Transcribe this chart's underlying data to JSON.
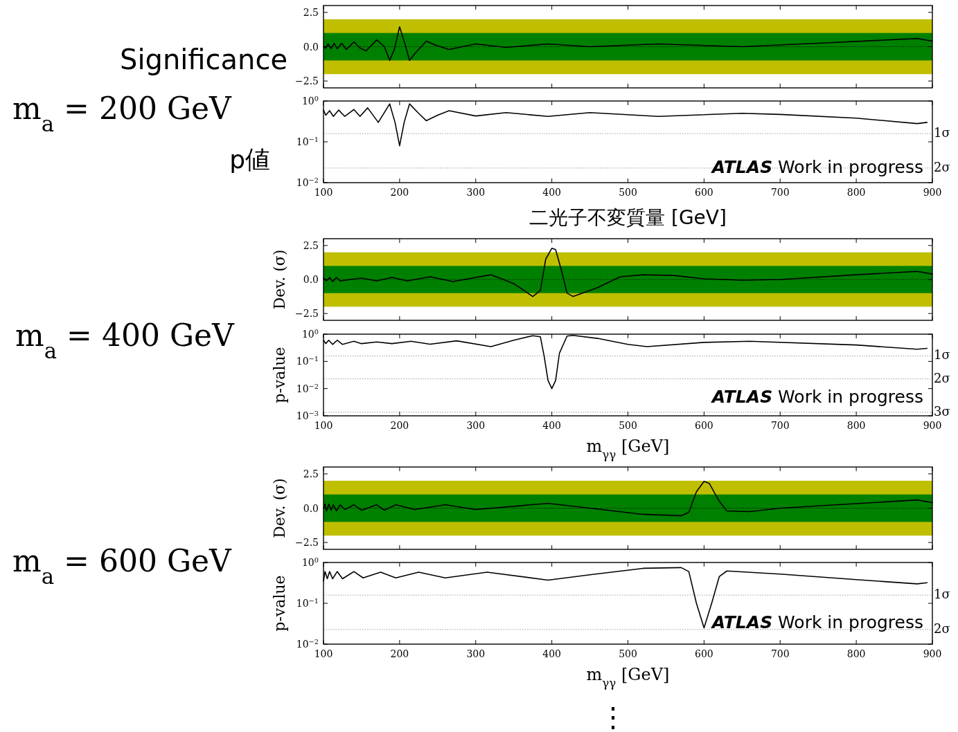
{
  "chart_data": [
    {
      "type": "line",
      "xlim": [
        100,
        900
      ],
      "xticks": [
        100,
        200,
        300,
        400,
        500,
        600,
        700,
        800,
        900
      ],
      "ylim": [
        -3,
        3
      ],
      "yticks": [
        {
          "value": -2.5,
          "label": "−2.5"
        },
        {
          "value": 0,
          "label": "0.0"
        },
        {
          "value": 2.5,
          "label": "2.5"
        }
      ],
      "tick_labels": "y",
      "bands": [
        {
          "axis": "y",
          "from": -2,
          "to": 2,
          "color": "#bfbf00"
        },
        {
          "axis": "y",
          "from": -1,
          "to": 1,
          "color": "#008000"
        }
      ],
      "ref_lines": [
        {
          "axis": "y",
          "value": 0,
          "color": "#000000",
          "line_style": "dotted"
        }
      ],
      "annotations": [
        "Significance",
        "m$_{a}$ = 200 GeV"
      ],
      "x": [
        100,
        103,
        106,
        110,
        114,
        118,
        124,
        130,
        140,
        148,
        156,
        170,
        180,
        187,
        193,
        200,
        207,
        213,
        220,
        235,
        248,
        265,
        300,
        340,
        395,
        450,
        540,
        650,
        750,
        880,
        900
      ],
      "series": [
        {
          "color": "#000000",
          "values": [
            0,
            -0.1,
            0.2,
            -0.15,
            0.25,
            -0.15,
            0.25,
            -0.2,
            0.35,
            -0.1,
            -0.3,
            0.5,
            0,
            -1.0,
            -0.2,
            1.45,
            0.2,
            -1.0,
            -0.5,
            0.4,
            0.1,
            -0.2,
            0.2,
            -0.05,
            0.2,
            0,
            0.2,
            0,
            0.25,
            0.6,
            0.4
          ]
        }
      ]
    },
    {
      "type": "line",
      "log": "y",
      "xlim": [
        100,
        900
      ],
      "xticks": [
        100,
        200,
        300,
        400,
        500,
        600,
        700,
        800,
        900
      ],
      "ylim": [
        0.01,
        1
      ],
      "yticks": [
        {
          "value": 0.01,
          "label": "10$^{−2}$"
        },
        {
          "value": 0.1,
          "label": "10$^{−1}$"
        },
        {
          "value": 1,
          "label": "10$^{0}$"
        }
      ],
      "xlabel": "二光子不変質量 [GeV]",
      "ref_lines": [
        {
          "axis": "y",
          "value": 0.159,
          "label": "1σ",
          "color": "#808080",
          "line_style": "dotted"
        },
        {
          "axis": "y",
          "value": 0.0228,
          "label": "2σ",
          "color": "#808080",
          "line_style": "dotted"
        }
      ],
      "annotations": [
        "p値",
        "ATLAS Work in progress"
      ],
      "x": [
        100,
        103,
        108,
        113,
        120,
        128,
        140,
        148,
        158,
        172,
        187,
        194,
        200,
        206,
        213,
        225,
        235,
        250,
        265,
        300,
        340,
        395,
        450,
        540,
        650,
        700,
        800,
        880,
        893
      ],
      "series": [
        {
          "color": "#000000",
          "values": [
            0.6,
            0.45,
            0.58,
            0.42,
            0.6,
            0.42,
            0.62,
            0.42,
            0.68,
            0.3,
            0.85,
            0.3,
            0.08,
            0.3,
            0.85,
            0.5,
            0.33,
            0.45,
            0.58,
            0.43,
            0.52,
            0.42,
            0.52,
            0.42,
            0.5,
            0.47,
            0.38,
            0.28,
            0.3
          ]
        }
      ]
    },
    {
      "type": "line",
      "xlim": [
        100,
        900
      ],
      "xticks": [
        100,
        200,
        300,
        400,
        500,
        600,
        700,
        800,
        900
      ],
      "ylim": [
        -3,
        3
      ],
      "yticks": [
        {
          "value": -2.5,
          "label": "−2.5"
        },
        {
          "value": 0,
          "label": "0.0"
        },
        {
          "value": 2.5,
          "label": "2.5"
        }
      ],
      "tick_labels": "y",
      "ylabel": "Dev. (σ)",
      "bands": [
        {
          "axis": "y",
          "from": -2,
          "to": 2,
          "color": "#bfbf00"
        },
        {
          "axis": "y",
          "from": -1,
          "to": 1,
          "color": "#008000"
        }
      ],
      "ref_lines": [
        {
          "axis": "y",
          "value": 0,
          "color": "#000000",
          "line_style": "dotted"
        }
      ],
      "annotations": [
        "m$_{a}$ = 400 GeV"
      ],
      "x": [
        100,
        104,
        108,
        112,
        117,
        122,
        135,
        150,
        170,
        190,
        210,
        240,
        270,
        320,
        350,
        375,
        385,
        392,
        400,
        405,
        412,
        420,
        428,
        460,
        490,
        520,
        560,
        600,
        650,
        700,
        800,
        880,
        900
      ],
      "series": [
        {
          "color": "#000000",
          "values": [
            0.1,
            -0.1,
            0.15,
            -0.15,
            0.15,
            -0.1,
            0,
            0.1,
            -0.1,
            0.15,
            -0.1,
            0.2,
            -0.15,
            0.35,
            -0.3,
            -1.25,
            -0.8,
            1.5,
            2.3,
            2.2,
            0.8,
            -1.0,
            -1.25,
            -0.6,
            0.2,
            0.35,
            0.3,
            0.05,
            -0.05,
            0,
            0.35,
            0.6,
            0.4
          ]
        }
      ]
    },
    {
      "type": "line",
      "log": "y",
      "xlim": [
        100,
        900
      ],
      "xticks": [
        100,
        200,
        300,
        400,
        500,
        600,
        700,
        800,
        900
      ],
      "ylim": [
        0.001,
        1
      ],
      "yticks": [
        {
          "value": 0.001,
          "label": "10$^{−3}$"
        },
        {
          "value": 0.01,
          "label": "10$^{−2}$"
        },
        {
          "value": 0.1,
          "label": "10$^{−1}$"
        },
        {
          "value": 1,
          "label": "10$^{0}$"
        }
      ],
      "xlabel": "m$_{γγ}$ [GeV]",
      "ylabel": "p-value",
      "ref_lines": [
        {
          "axis": "y",
          "value": 0.159,
          "label": "1σ",
          "color": "#808080",
          "line_style": "dotted"
        },
        {
          "axis": "y",
          "value": 0.0228,
          "label": "2σ",
          "color": "#808080",
          "line_style": "dotted"
        },
        {
          "axis": "y",
          "value": 0.00135,
          "label": "3σ",
          "color": "#808080",
          "line_style": "dotted"
        }
      ],
      "annotations": [
        "ATLAS Work in progress"
      ],
      "x": [
        100,
        103,
        107,
        112,
        118,
        125,
        140,
        150,
        170,
        190,
        215,
        240,
        275,
        320,
        350,
        375,
        385,
        390,
        395,
        400,
        405,
        410,
        420,
        428,
        460,
        500,
        525,
        600,
        660,
        800,
        880,
        893
      ],
      "series": [
        {
          "color": "#000000",
          "values": [
            0.6,
            0.45,
            0.6,
            0.42,
            0.6,
            0.42,
            0.55,
            0.45,
            0.52,
            0.45,
            0.55,
            0.43,
            0.57,
            0.35,
            0.6,
            0.88,
            0.8,
            0.15,
            0.02,
            0.01,
            0.02,
            0.2,
            0.85,
            0.9,
            0.7,
            0.42,
            0.35,
            0.5,
            0.55,
            0.4,
            0.28,
            0.3
          ]
        }
      ]
    },
    {
      "type": "line",
      "xlim": [
        100,
        900
      ],
      "xticks": [
        100,
        200,
        300,
        400,
        500,
        600,
        700,
        800,
        900
      ],
      "ylim": [
        -3,
        3
      ],
      "yticks": [
        {
          "value": -2.5,
          "label": "−2.5"
        },
        {
          "value": 0,
          "label": "0.0"
        },
        {
          "value": 2.5,
          "label": "2.5"
        }
      ],
      "tick_labels": "y",
      "ylabel": "Dev. (σ)",
      "bands": [
        {
          "axis": "y",
          "from": -2,
          "to": 2,
          "color": "#bfbf00"
        },
        {
          "axis": "y",
          "from": -1,
          "to": 1,
          "color": "#008000"
        }
      ],
      "ref_lines": [
        {
          "axis": "y",
          "value": 0,
          "color": "#000000",
          "line_style": "dotted"
        }
      ],
      "annotations": [
        "m$_{a}$ = 600 GeV"
      ],
      "x": [
        100,
        102,
        104,
        107,
        110,
        113,
        117,
        122,
        128,
        140,
        150,
        170,
        180,
        195,
        220,
        260,
        300,
        395,
        450,
        520,
        570,
        580,
        590,
        600,
        607,
        620,
        630,
        660,
        700,
        880,
        900
      ],
      "series": [
        {
          "color": "#000000",
          "values": [
            0,
            0.3,
            -0.2,
            0.3,
            -0.15,
            0.25,
            -0.2,
            0.25,
            -0.1,
            0.25,
            -0.15,
            0.25,
            -0.15,
            0.25,
            -0.1,
            0.25,
            -0.1,
            0.35,
            0,
            -0.45,
            -0.55,
            -0.3,
            1.2,
            1.95,
            1.8,
            0.5,
            -0.2,
            -0.25,
            0,
            0.6,
            0.4
          ]
        }
      ]
    },
    {
      "type": "line",
      "log": "y",
      "xlim": [
        100,
        900
      ],
      "xticks": [
        100,
        200,
        300,
        400,
        500,
        600,
        700,
        800,
        900
      ],
      "ylim": [
        0.01,
        1
      ],
      "yticks": [
        {
          "value": 0.01,
          "label": "10$^{−2}$"
        },
        {
          "value": 0.1,
          "label": "10$^{−1}$"
        },
        {
          "value": 1,
          "label": "10$^{0}$"
        }
      ],
      "xlabel": "m$_{γγ}$ [GeV]",
      "ylabel": "p-value",
      "ref_lines": [
        {
          "axis": "y",
          "value": 0.159,
          "label": "1σ",
          "color": "#808080",
          "line_style": "dotted"
        },
        {
          "axis": "y",
          "value": 0.0228,
          "label": "2σ",
          "color": "#808080",
          "line_style": "dotted"
        }
      ],
      "annotations": [
        "ATLAS Work in progress",
        "⋮"
      ],
      "x": [
        100,
        102,
        105,
        108,
        112,
        118,
        125,
        140,
        152,
        175,
        195,
        225,
        260,
        315,
        395,
        450,
        520,
        570,
        580,
        590,
        600,
        610,
        620,
        630,
        700,
        800,
        880,
        893
      ],
      "series": [
        {
          "color": "#000000",
          "values": [
            0.35,
            0.6,
            0.4,
            0.6,
            0.4,
            0.6,
            0.4,
            0.6,
            0.42,
            0.58,
            0.42,
            0.58,
            0.42,
            0.58,
            0.37,
            0.5,
            0.72,
            0.75,
            0.6,
            0.1,
            0.025,
            0.1,
            0.45,
            0.62,
            0.52,
            0.38,
            0.3,
            0.32
          ]
        }
      ]
    }
  ]
}
